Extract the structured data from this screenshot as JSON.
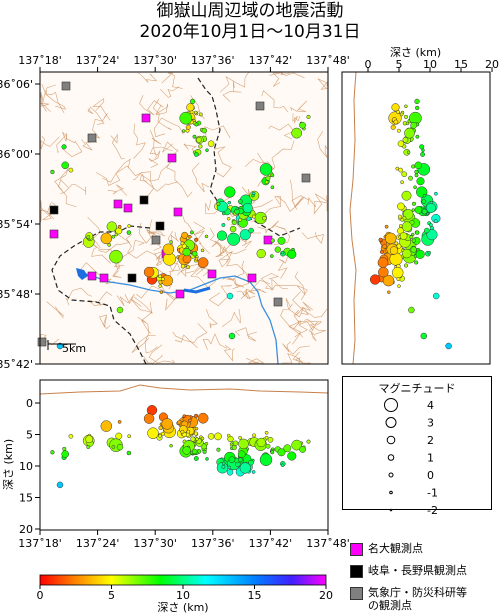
{
  "title": {
    "line1": "御嶽山周辺域の地震活動",
    "line2": "2020年10月1日～10月31日"
  },
  "map": {
    "lon_ticks": [
      "137˚18'",
      "137˚24'",
      "137˚30'",
      "137˚36'",
      "137˚42'",
      "137˚48'"
    ],
    "lat_ticks": [
      "36˚06'",
      "36˚00'",
      "35˚54'",
      "35˚48'",
      "35˚42'"
    ],
    "scale_label": "5km"
  },
  "depth_side_panel": {
    "axis_label": "深さ (km)",
    "ticks": [
      "0",
      "5",
      "10",
      "15",
      "20"
    ]
  },
  "depth_bottom_panel": {
    "axis_label": "深さ (km)",
    "ticks": [
      "0",
      "5",
      "10",
      "15",
      "20"
    ],
    "lon_ticks": [
      "137˚18'",
      "137˚24'",
      "137˚30'",
      "137˚36'",
      "137˚42'",
      "137˚48'"
    ]
  },
  "magnitude_legend": {
    "title": "マグニチュード",
    "entries": [
      {
        "label": "4",
        "r": 6.5
      },
      {
        "label": "3",
        "r": 5
      },
      {
        "label": "2",
        "r": 3.8
      },
      {
        "label": "1",
        "r": 2.8
      },
      {
        "label": "0",
        "r": 2
      },
      {
        "label": "-1",
        "r": 1.3
      },
      {
        "label": "-2",
        "r": 0.8
      }
    ]
  },
  "station_legend": [
    {
      "label": "名大観測点",
      "color": "#ff00ff"
    },
    {
      "label": "岐阜・長野県観測点",
      "color": "#000000"
    },
    {
      "label": "気象庁・防災科研等",
      "label2": "の観測点",
      "color": "#808080"
    }
  ],
  "colorbar": {
    "ticks": [
      "0",
      "5",
      "10",
      "15",
      "20"
    ],
    "label": "深さ (km)"
  }
}
